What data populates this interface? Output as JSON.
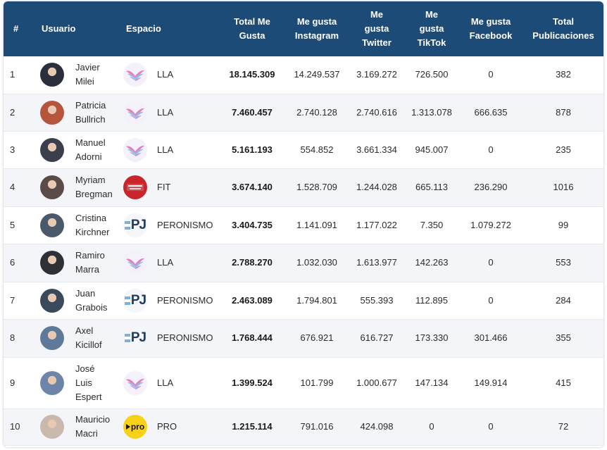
{
  "chart_data": {
    "type": "table",
    "columns": [
      "#",
      "Usuario",
      "Espacio",
      "Total Me Gusta",
      "Me gusta Instagram",
      "Me gusta Twitter",
      "Me gusta TikTok",
      "Me gusta Facebook",
      "Total Publicaciones"
    ],
    "header_lines": [
      [
        "#"
      ],
      [
        "Usuario"
      ],
      [
        "Espacio"
      ],
      [
        "Total Me",
        "Gusta"
      ],
      [
        "Me gusta",
        "Instagram"
      ],
      [
        "Me",
        "gusta",
        "Twitter"
      ],
      [
        "Me",
        "gusta",
        "TikTok"
      ],
      [
        "Me gusta",
        "Facebook"
      ],
      [
        "Total",
        "Publicaciones"
      ]
    ],
    "rows": [
      {
        "rank": "1",
        "name_lines": [
          "Javier",
          "Milei"
        ],
        "space": "LLA",
        "space_logo": "lla-bird-icon",
        "total": "18.145.309",
        "instagram": "14.249.537",
        "twitter": "3.169.272",
        "tiktok": "726.500",
        "facebook": "0",
        "posts": "382"
      },
      {
        "rank": "2",
        "name_lines": [
          "Patricia",
          "Bullrich"
        ],
        "space": "LLA",
        "space_logo": "lla-bird-icon",
        "total": "7.460.457",
        "instagram": "2.740.128",
        "twitter": "2.740.616",
        "tiktok": "1.313.078",
        "facebook": "666.635",
        "posts": "878"
      },
      {
        "rank": "3",
        "name_lines": [
          "Manuel",
          "Adorni"
        ],
        "space": "LLA",
        "space_logo": "lla-bird-icon",
        "total": "5.161.193",
        "instagram": "554.852",
        "twitter": "3.661.334",
        "tiktok": "945.007",
        "facebook": "0",
        "posts": "235"
      },
      {
        "rank": "4",
        "name_lines": [
          "Myriam",
          "Bregman"
        ],
        "space": "FIT",
        "space_logo": "fit-logo-icon",
        "total": "3.674.140",
        "instagram": "1.528.709",
        "twitter": "1.244.028",
        "tiktok": "665.113",
        "facebook": "236.290",
        "posts": "1016"
      },
      {
        "rank": "5",
        "name_lines": [
          "Cristina",
          "Kirchner"
        ],
        "space": "PERONISMO",
        "space_logo": "pj-logo-icon",
        "total": "3.404.735",
        "instagram": "1.141.091",
        "twitter": "1.177.022",
        "tiktok": "7.350",
        "facebook": "1.079.272",
        "posts": "99"
      },
      {
        "rank": "6",
        "name_lines": [
          "Ramiro",
          "Marra"
        ],
        "space": "LLA",
        "space_logo": "lla-bird-icon",
        "total": "2.788.270",
        "instagram": "1.032.030",
        "twitter": "1.613.977",
        "tiktok": "142.263",
        "facebook": "0",
        "posts": "553"
      },
      {
        "rank": "7",
        "name_lines": [
          "Juan",
          "Grabois"
        ],
        "space": "PERONISMO",
        "space_logo": "pj-logo-icon",
        "total": "2.463.089",
        "instagram": "1.794.801",
        "twitter": "555.393",
        "tiktok": "112.895",
        "facebook": "0",
        "posts": "284"
      },
      {
        "rank": "8",
        "name_lines": [
          "Axel",
          "Kicillof"
        ],
        "space": "PERONISMO",
        "space_logo": "pj-logo-icon",
        "total": "1.768.444",
        "instagram": "676.921",
        "twitter": "616.727",
        "tiktok": "173.330",
        "facebook": "301.466",
        "posts": "355"
      },
      {
        "rank": "9",
        "name_lines": [
          "José",
          "Luis",
          "Espert"
        ],
        "space": "LLA",
        "space_logo": "lla-bird-icon",
        "total": "1.399.524",
        "instagram": "101.799",
        "twitter": "1.000.677",
        "tiktok": "147.134",
        "facebook": "149.914",
        "posts": "415"
      },
      {
        "rank": "10",
        "name_lines": [
          "Mauricio",
          "Macri"
        ],
        "space": "PRO",
        "space_logo": "pro-logo-icon",
        "total": "1.215.114",
        "instagram": "791.016",
        "twitter": "424.098",
        "tiktok": "0",
        "facebook": "0",
        "posts": "72"
      }
    ]
  },
  "logo_text": {
    "pj": "PJ",
    "pro": "pro"
  },
  "colors": {
    "header_bg": "#1d4b78",
    "header_text": "#ffffff",
    "row_alt": "#f3f5f8",
    "fit_red": "#c8262c",
    "pro_yellow": "#f7d117",
    "pj_navy": "#1f3b5c"
  },
  "avatar_colors": [
    "#2a2f3a",
    "#b5553c",
    "#3b3f4c",
    "#5a4a48",
    "#4a5a6b",
    "#2f2f36",
    "#3a4a5a",
    "#5e7a98",
    "#6c85a8",
    "#c9b8ac"
  ]
}
